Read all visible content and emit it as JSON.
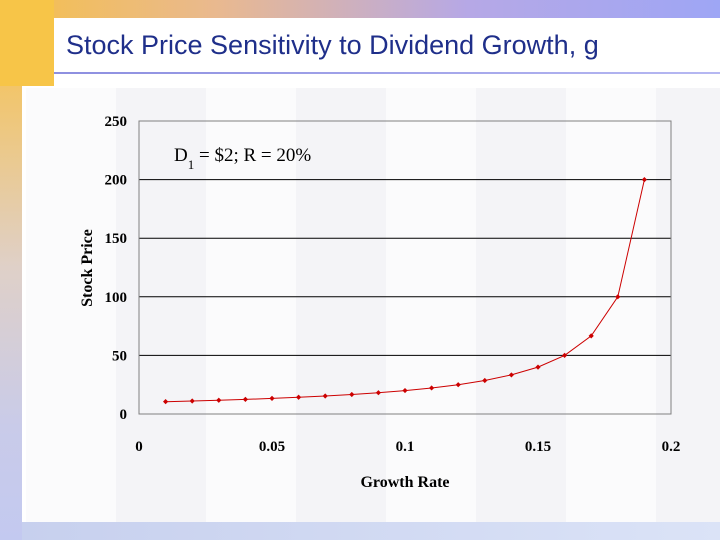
{
  "slide": {
    "title": "Stock Price Sensitivity to Dividend Growth, g"
  },
  "colors": {
    "series": "#cc0000",
    "title": "#1f2f8a"
  },
  "chart_data": {
    "type": "line",
    "xlabel": "Growth Rate",
    "ylabel": "Stock Price",
    "xlim": [
      0,
      0.2
    ],
    "ylim": [
      0,
      250
    ],
    "x_ticks": [
      "0",
      "0.05",
      "0.1",
      "0.15",
      "0.2"
    ],
    "y_ticks": [
      "0",
      "50",
      "100",
      "150",
      "200",
      "250"
    ],
    "grid": "horizontal",
    "annotation": {
      "main": "D",
      "sub": "1",
      "rest": " = $2; R = 20%"
    },
    "series": [
      {
        "x": [
          0.01,
          0.02,
          0.03,
          0.04,
          0.05,
          0.06,
          0.07,
          0.08,
          0.09,
          0.1,
          0.11,
          0.12,
          0.13,
          0.14,
          0.15,
          0.16,
          0.17,
          0.18,
          0.19
        ],
        "values": [
          10.53,
          11.11,
          11.76,
          12.5,
          13.33,
          14.29,
          15.38,
          16.67,
          18.18,
          20.0,
          22.22,
          25.0,
          28.57,
          33.33,
          40.0,
          50.0,
          66.67,
          100.0,
          200.0
        ]
      }
    ]
  }
}
